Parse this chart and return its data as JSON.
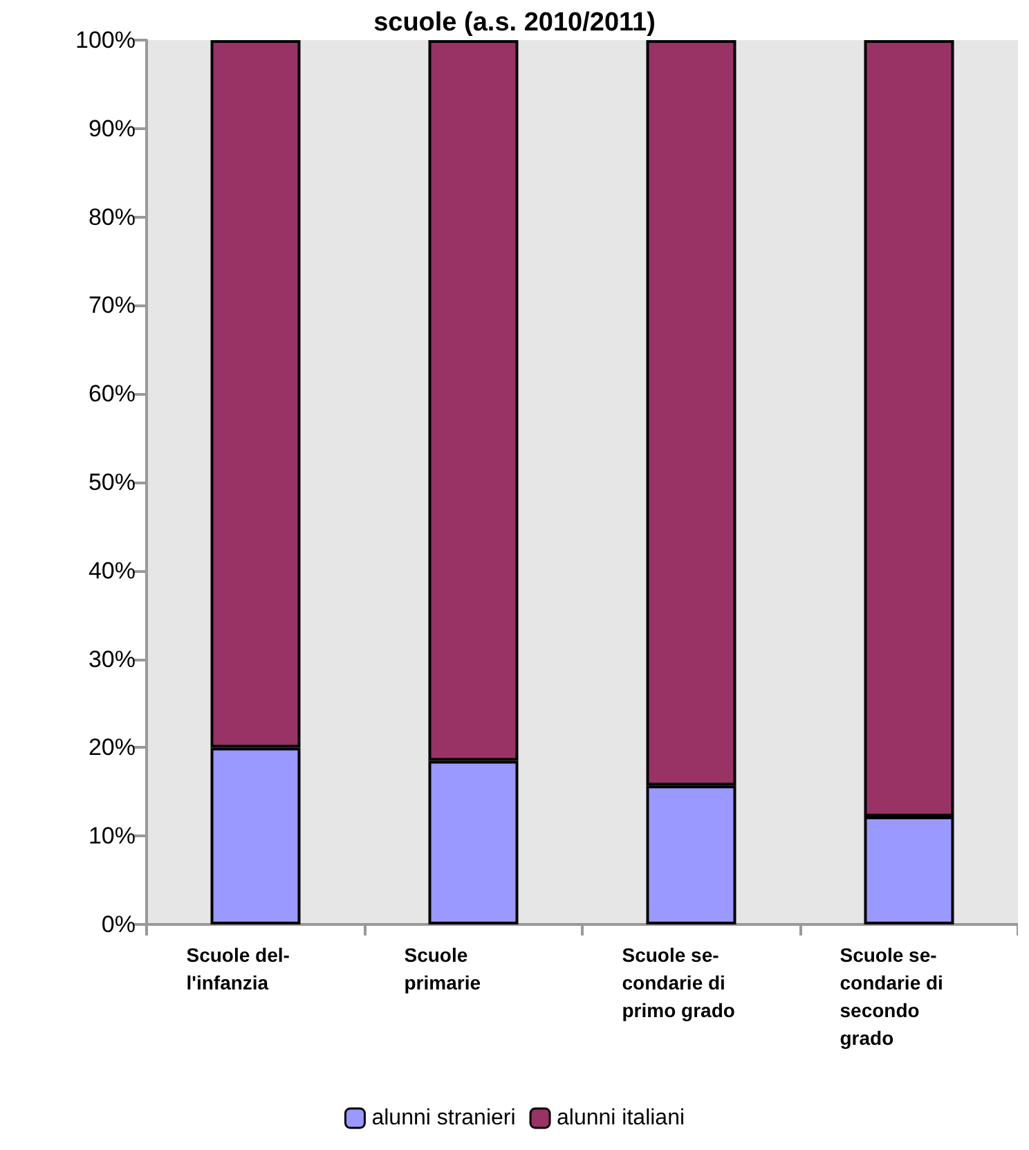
{
  "chart_data": {
    "type": "bar",
    "title": "scuole (a.s. 2010/2011)",
    "stacked": true,
    "categories": [
      "Scuole del-\nl'infanzia",
      "Scuole\nprimarie",
      "Scuole se-\ncondarie di\nprimo grado",
      "Scuole se-\ncondarie di\nsecondo\ngrado"
    ],
    "series": [
      {
        "name": "alunni stranieri",
        "color": "#9999ff",
        "values": [
          20.0,
          18.5,
          15.7,
          12.2
        ]
      },
      {
        "name": "alunni italiani",
        "color": "#993366",
        "values": [
          80.0,
          81.5,
          84.3,
          87.8
        ]
      }
    ],
    "ylim": [
      0,
      100
    ],
    "yticks": [
      {
        "value": 0,
        "label": "0%"
      },
      {
        "value": 10,
        "label": "10%"
      },
      {
        "value": 20,
        "label": "20%"
      },
      {
        "value": 30,
        "label": "30%"
      },
      {
        "value": 40,
        "label": "40%"
      },
      {
        "value": 50,
        "label": "50%"
      },
      {
        "value": 60,
        "label": "60%"
      },
      {
        "value": 70,
        "label": "70%"
      },
      {
        "value": 80,
        "label": "80%"
      },
      {
        "value": 90,
        "label": "90%"
      },
      {
        "value": 100,
        "label": "100%"
      }
    ],
    "grid": false,
    "legend": "bottom"
  }
}
